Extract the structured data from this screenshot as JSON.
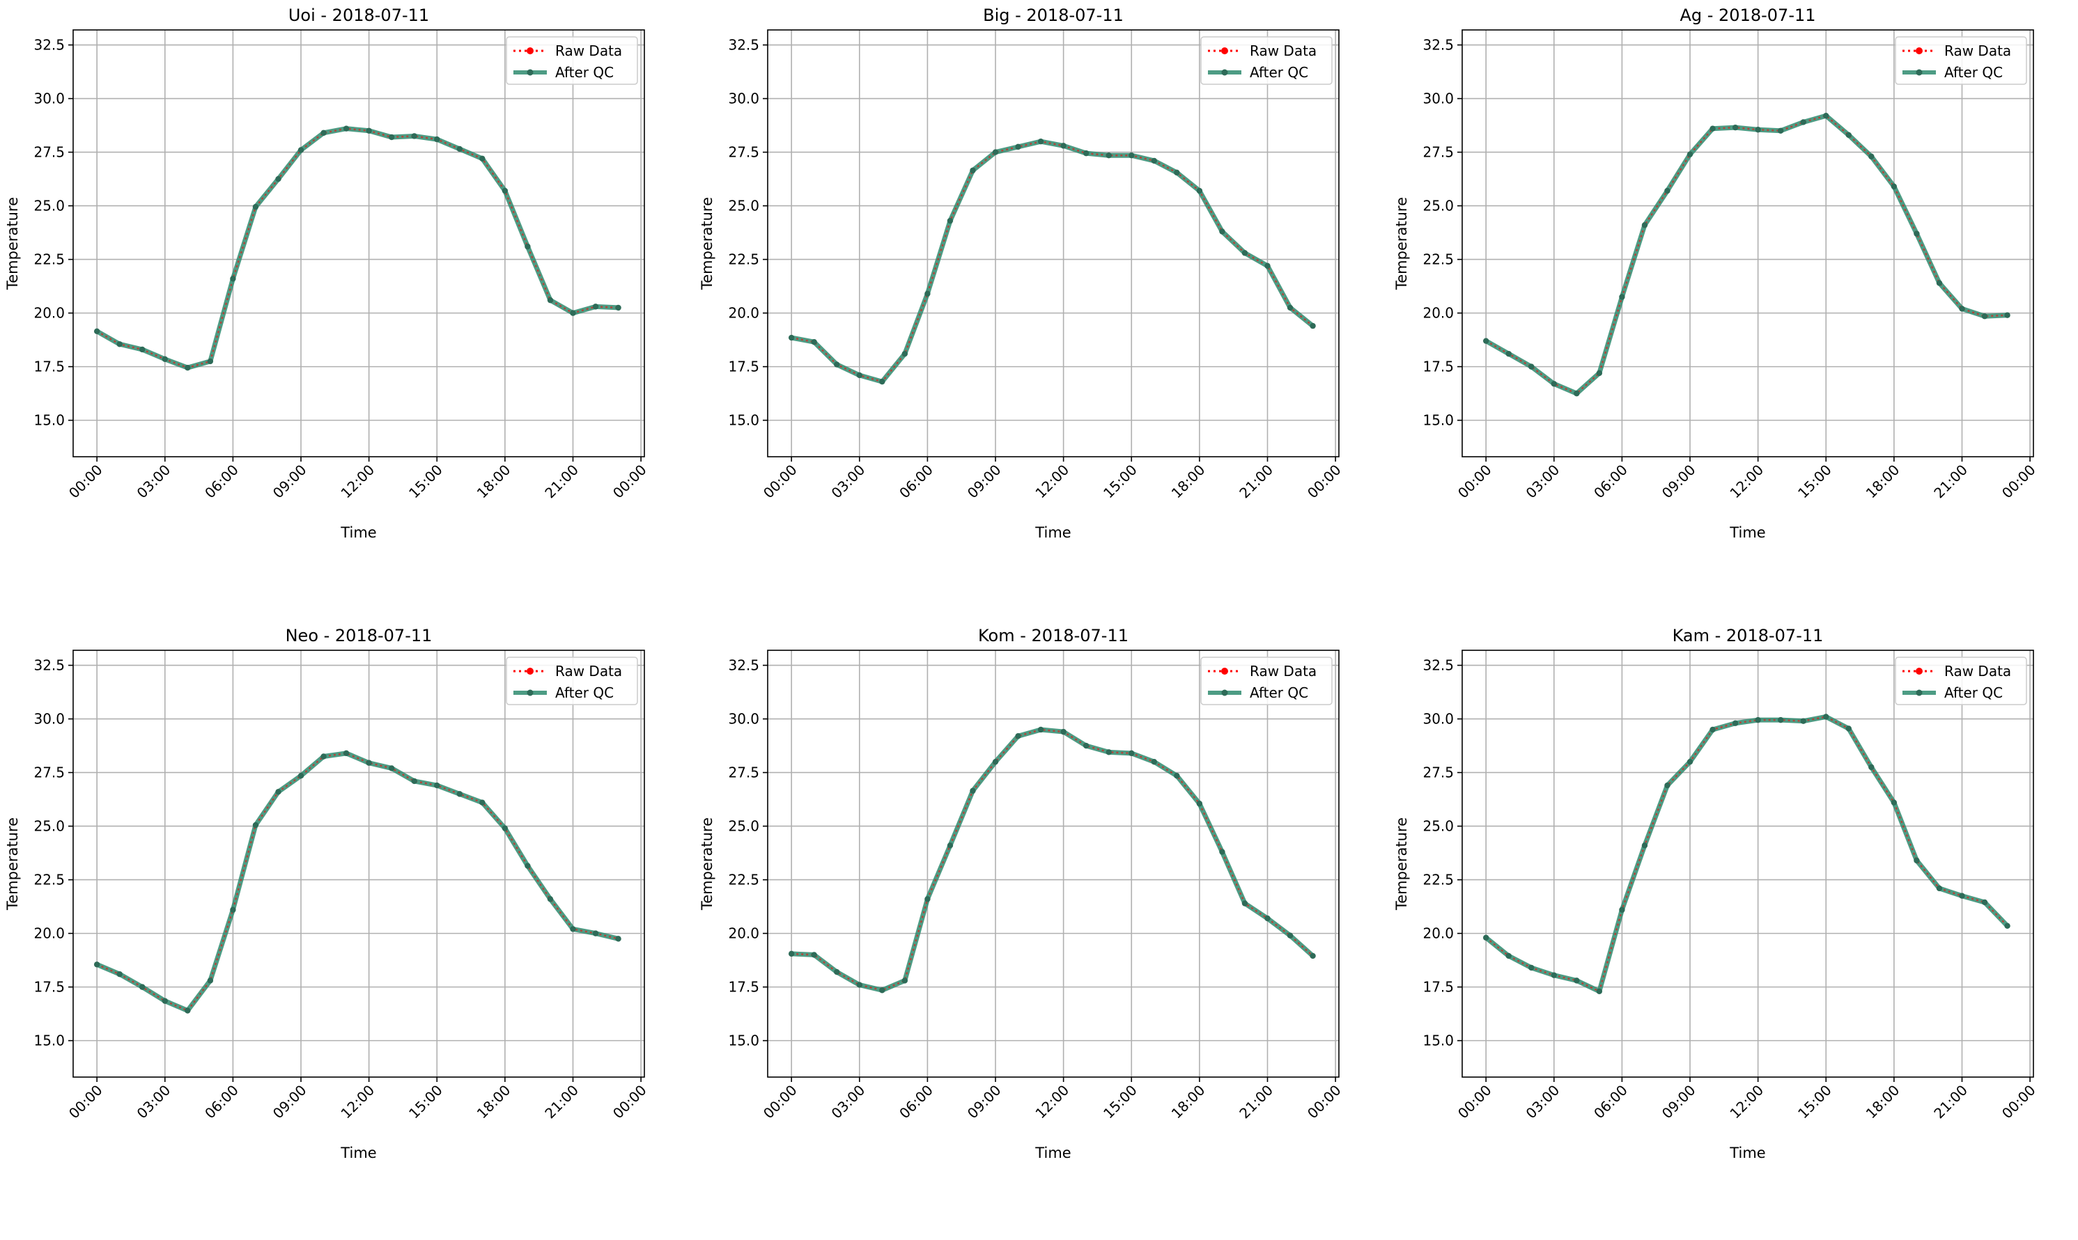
{
  "figure": {
    "background": "#ffffff"
  },
  "style": {
    "raw_color": "#ff0000",
    "qc_color": "#2e8b6e",
    "qc_marker_color": "#2e6b58",
    "grid_color": "#b0b0b0"
  },
  "chart_data": [
    {
      "type": "line",
      "title": "Uoi - 2018-07-11",
      "xlabel": "Time",
      "ylabel": "Temperature",
      "x": [
        "00:00",
        "01:00",
        "02:00",
        "03:00",
        "04:00",
        "05:00",
        "06:00",
        "07:00",
        "08:00",
        "09:00",
        "10:00",
        "11:00",
        "12:00",
        "13:00",
        "14:00",
        "15:00",
        "16:00",
        "17:00",
        "18:00",
        "19:00",
        "20:00",
        "21:00",
        "22:00",
        "23:00"
      ],
      "xticks": [
        "00:00",
        "03:00",
        "06:00",
        "09:00",
        "12:00",
        "15:00",
        "18:00",
        "21:00",
        "00:00"
      ],
      "xlim_hours": [
        -1.05,
        24.15
      ],
      "ylim": [
        13.3,
        33.2
      ],
      "yticks": [
        "15.0",
        "17.5",
        "20.0",
        "22.5",
        "25.0",
        "27.5",
        "30.0",
        "32.5"
      ],
      "grid": true,
      "legend_position": "top-right",
      "series": [
        {
          "name": "Raw Data",
          "values": [
            19.15,
            18.55,
            18.3,
            17.85,
            17.45,
            17.75,
            21.6,
            24.95,
            26.25,
            27.6,
            28.4,
            28.6,
            28.5,
            28.2,
            28.25,
            28.1,
            27.65,
            27.2,
            25.7,
            23.1,
            20.6,
            20.0,
            20.3,
            20.25
          ]
        },
        {
          "name": "After QC",
          "values": [
            19.15,
            18.55,
            18.3,
            17.85,
            17.45,
            17.75,
            21.6,
            24.95,
            26.25,
            27.6,
            28.4,
            28.6,
            28.5,
            28.2,
            28.25,
            28.1,
            27.65,
            27.2,
            25.7,
            23.1,
            20.6,
            20.0,
            20.3,
            20.25
          ]
        }
      ]
    },
    {
      "type": "line",
      "title": "Big - 2018-07-11",
      "xlabel": "Time",
      "ylabel": "Temperature",
      "x": [
        "00:00",
        "01:00",
        "02:00",
        "03:00",
        "04:00",
        "05:00",
        "06:00",
        "07:00",
        "08:00",
        "09:00",
        "10:00",
        "11:00",
        "12:00",
        "13:00",
        "14:00",
        "15:00",
        "16:00",
        "17:00",
        "18:00",
        "19:00",
        "20:00",
        "21:00",
        "22:00",
        "23:00"
      ],
      "xticks": [
        "00:00",
        "03:00",
        "06:00",
        "09:00",
        "12:00",
        "15:00",
        "18:00",
        "21:00",
        "00:00"
      ],
      "xlim_hours": [
        -1.05,
        24.15
      ],
      "ylim": [
        13.3,
        33.2
      ],
      "yticks": [
        "15.0",
        "17.5",
        "20.0",
        "22.5",
        "25.0",
        "27.5",
        "30.0",
        "32.5"
      ],
      "grid": true,
      "legend_position": "top-right",
      "series": [
        {
          "name": "Raw Data",
          "values": [
            18.85,
            18.65,
            17.6,
            17.1,
            16.8,
            18.1,
            20.9,
            24.3,
            26.65,
            27.5,
            27.75,
            28.0,
            27.8,
            27.45,
            27.35,
            27.35,
            27.1,
            26.55,
            25.7,
            23.8,
            22.8,
            22.2,
            20.25,
            19.4
          ]
        },
        {
          "name": "After QC",
          "values": [
            18.85,
            18.65,
            17.6,
            17.1,
            16.8,
            18.1,
            20.9,
            24.3,
            26.65,
            27.5,
            27.75,
            28.0,
            27.8,
            27.45,
            27.35,
            27.35,
            27.1,
            26.55,
            25.7,
            23.8,
            22.8,
            22.2,
            20.25,
            19.4
          ]
        }
      ]
    },
    {
      "type": "line",
      "title": "Ag - 2018-07-11",
      "xlabel": "Time",
      "ylabel": "Temperature",
      "x": [
        "00:00",
        "01:00",
        "02:00",
        "03:00",
        "04:00",
        "05:00",
        "06:00",
        "07:00",
        "08:00",
        "09:00",
        "10:00",
        "11:00",
        "12:00",
        "13:00",
        "14:00",
        "15:00",
        "16:00",
        "17:00",
        "18:00",
        "19:00",
        "20:00",
        "21:00",
        "22:00",
        "23:00"
      ],
      "xticks": [
        "00:00",
        "03:00",
        "06:00",
        "09:00",
        "12:00",
        "15:00",
        "18:00",
        "21:00",
        "00:00"
      ],
      "xlim_hours": [
        -1.05,
        24.15
      ],
      "ylim": [
        13.3,
        33.2
      ],
      "yticks": [
        "15.0",
        "17.5",
        "20.0",
        "22.5",
        "25.0",
        "27.5",
        "30.0",
        "32.5"
      ],
      "grid": true,
      "legend_position": "top-right",
      "series": [
        {
          "name": "Raw Data",
          "values": [
            18.7,
            18.1,
            17.5,
            16.7,
            16.25,
            17.2,
            20.75,
            24.1,
            25.7,
            27.4,
            28.6,
            28.65,
            28.55,
            28.5,
            28.9,
            29.2,
            28.3,
            27.3,
            25.9,
            23.7,
            21.4,
            20.2,
            19.85,
            19.9
          ]
        },
        {
          "name": "After QC",
          "values": [
            18.7,
            18.1,
            17.5,
            16.7,
            16.25,
            17.2,
            20.75,
            24.1,
            25.7,
            27.4,
            28.6,
            28.65,
            28.55,
            28.5,
            28.9,
            29.2,
            28.3,
            27.3,
            25.9,
            23.7,
            21.4,
            20.2,
            19.85,
            19.9
          ]
        }
      ]
    },
    {
      "type": "line",
      "title": "Neo - 2018-07-11",
      "xlabel": "Time",
      "ylabel": "Temperature",
      "x": [
        "00:00",
        "01:00",
        "02:00",
        "03:00",
        "04:00",
        "05:00",
        "06:00",
        "07:00",
        "08:00",
        "09:00",
        "10:00",
        "11:00",
        "12:00",
        "13:00",
        "14:00",
        "15:00",
        "16:00",
        "17:00",
        "18:00",
        "19:00",
        "20:00",
        "21:00",
        "22:00",
        "23:00"
      ],
      "xticks": [
        "00:00",
        "03:00",
        "06:00",
        "09:00",
        "12:00",
        "15:00",
        "18:00",
        "21:00",
        "00:00"
      ],
      "xlim_hours": [
        -1.05,
        24.15
      ],
      "ylim": [
        13.3,
        33.2
      ],
      "yticks": [
        "15.0",
        "17.5",
        "20.0",
        "22.5",
        "25.0",
        "27.5",
        "30.0",
        "32.5"
      ],
      "grid": true,
      "legend_position": "top-right",
      "series": [
        {
          "name": "Raw Data",
          "values": [
            18.55,
            18.1,
            17.5,
            16.85,
            16.4,
            17.8,
            21.1,
            25.05,
            26.6,
            27.35,
            28.25,
            28.4,
            27.95,
            27.7,
            27.1,
            26.9,
            26.5,
            26.1,
            24.9,
            23.15,
            21.6,
            20.2,
            20.0,
            19.75
          ]
        },
        {
          "name": "After QC",
          "values": [
            18.55,
            18.1,
            17.5,
            16.85,
            16.4,
            17.8,
            21.1,
            25.05,
            26.6,
            27.35,
            28.25,
            28.4,
            27.95,
            27.7,
            27.1,
            26.9,
            26.5,
            26.1,
            24.9,
            23.15,
            21.6,
            20.2,
            20.0,
            19.75
          ]
        }
      ]
    },
    {
      "type": "line",
      "title": "Kom - 2018-07-11",
      "xlabel": "Time",
      "ylabel": "Temperature",
      "x": [
        "00:00",
        "01:00",
        "02:00",
        "03:00",
        "04:00",
        "05:00",
        "06:00",
        "07:00",
        "08:00",
        "09:00",
        "10:00",
        "11:00",
        "12:00",
        "13:00",
        "14:00",
        "15:00",
        "16:00",
        "17:00",
        "18:00",
        "19:00",
        "20:00",
        "21:00",
        "22:00",
        "23:00"
      ],
      "xticks": [
        "00:00",
        "03:00",
        "06:00",
        "09:00",
        "12:00",
        "15:00",
        "18:00",
        "21:00",
        "00:00"
      ],
      "xlim_hours": [
        -1.05,
        24.15
      ],
      "ylim": [
        13.3,
        33.2
      ],
      "yticks": [
        "15.0",
        "17.5",
        "20.0",
        "22.5",
        "25.0",
        "27.5",
        "30.0",
        "32.5"
      ],
      "grid": true,
      "legend_position": "top-right",
      "series": [
        {
          "name": "Raw Data",
          "values": [
            19.05,
            19.0,
            18.2,
            17.6,
            17.35,
            17.8,
            21.6,
            24.1,
            26.65,
            28.0,
            29.2,
            29.5,
            29.4,
            28.75,
            28.45,
            28.4,
            28.0,
            27.35,
            26.05,
            23.8,
            21.4,
            20.7,
            19.9,
            18.95
          ]
        },
        {
          "name": "After QC",
          "values": [
            19.05,
            19.0,
            18.2,
            17.6,
            17.35,
            17.8,
            21.6,
            24.1,
            26.65,
            28.0,
            29.2,
            29.5,
            29.4,
            28.75,
            28.45,
            28.4,
            28.0,
            27.35,
            26.05,
            23.8,
            21.4,
            20.7,
            19.9,
            18.95
          ]
        }
      ]
    },
    {
      "type": "line",
      "title": "Kam - 2018-07-11",
      "xlabel": "Time",
      "ylabel": "Temperature",
      "x": [
        "00:00",
        "01:00",
        "02:00",
        "03:00",
        "04:00",
        "05:00",
        "06:00",
        "07:00",
        "08:00",
        "09:00",
        "10:00",
        "11:00",
        "12:00",
        "13:00",
        "14:00",
        "15:00",
        "16:00",
        "17:00",
        "18:00",
        "19:00",
        "20:00",
        "21:00",
        "22:00",
        "23:00"
      ],
      "xticks": [
        "00:00",
        "03:00",
        "06:00",
        "09:00",
        "12:00",
        "15:00",
        "18:00",
        "21:00",
        "00:00"
      ],
      "xlim_hours": [
        -1.05,
        24.15
      ],
      "ylim": [
        13.3,
        33.2
      ],
      "yticks": [
        "15.0",
        "17.5",
        "20.0",
        "22.5",
        "25.0",
        "27.5",
        "30.0",
        "32.5"
      ],
      "grid": true,
      "legend_position": "top-right",
      "series": [
        {
          "name": "Raw Data",
          "values": [
            19.8,
            18.95,
            18.4,
            18.05,
            17.8,
            17.3,
            21.1,
            24.1,
            26.9,
            28.0,
            29.5,
            29.8,
            29.95,
            29.95,
            29.9,
            30.1,
            29.55,
            27.75,
            26.1,
            23.4,
            22.1,
            21.75,
            21.45,
            20.35
          ]
        },
        {
          "name": "After QC",
          "values": [
            19.8,
            18.95,
            18.4,
            18.05,
            17.8,
            17.3,
            21.1,
            24.1,
            26.9,
            28.0,
            29.5,
            29.8,
            29.95,
            29.95,
            29.9,
            30.1,
            29.55,
            27.75,
            26.1,
            23.4,
            22.1,
            21.75,
            21.45,
            20.35
          ]
        }
      ]
    }
  ]
}
